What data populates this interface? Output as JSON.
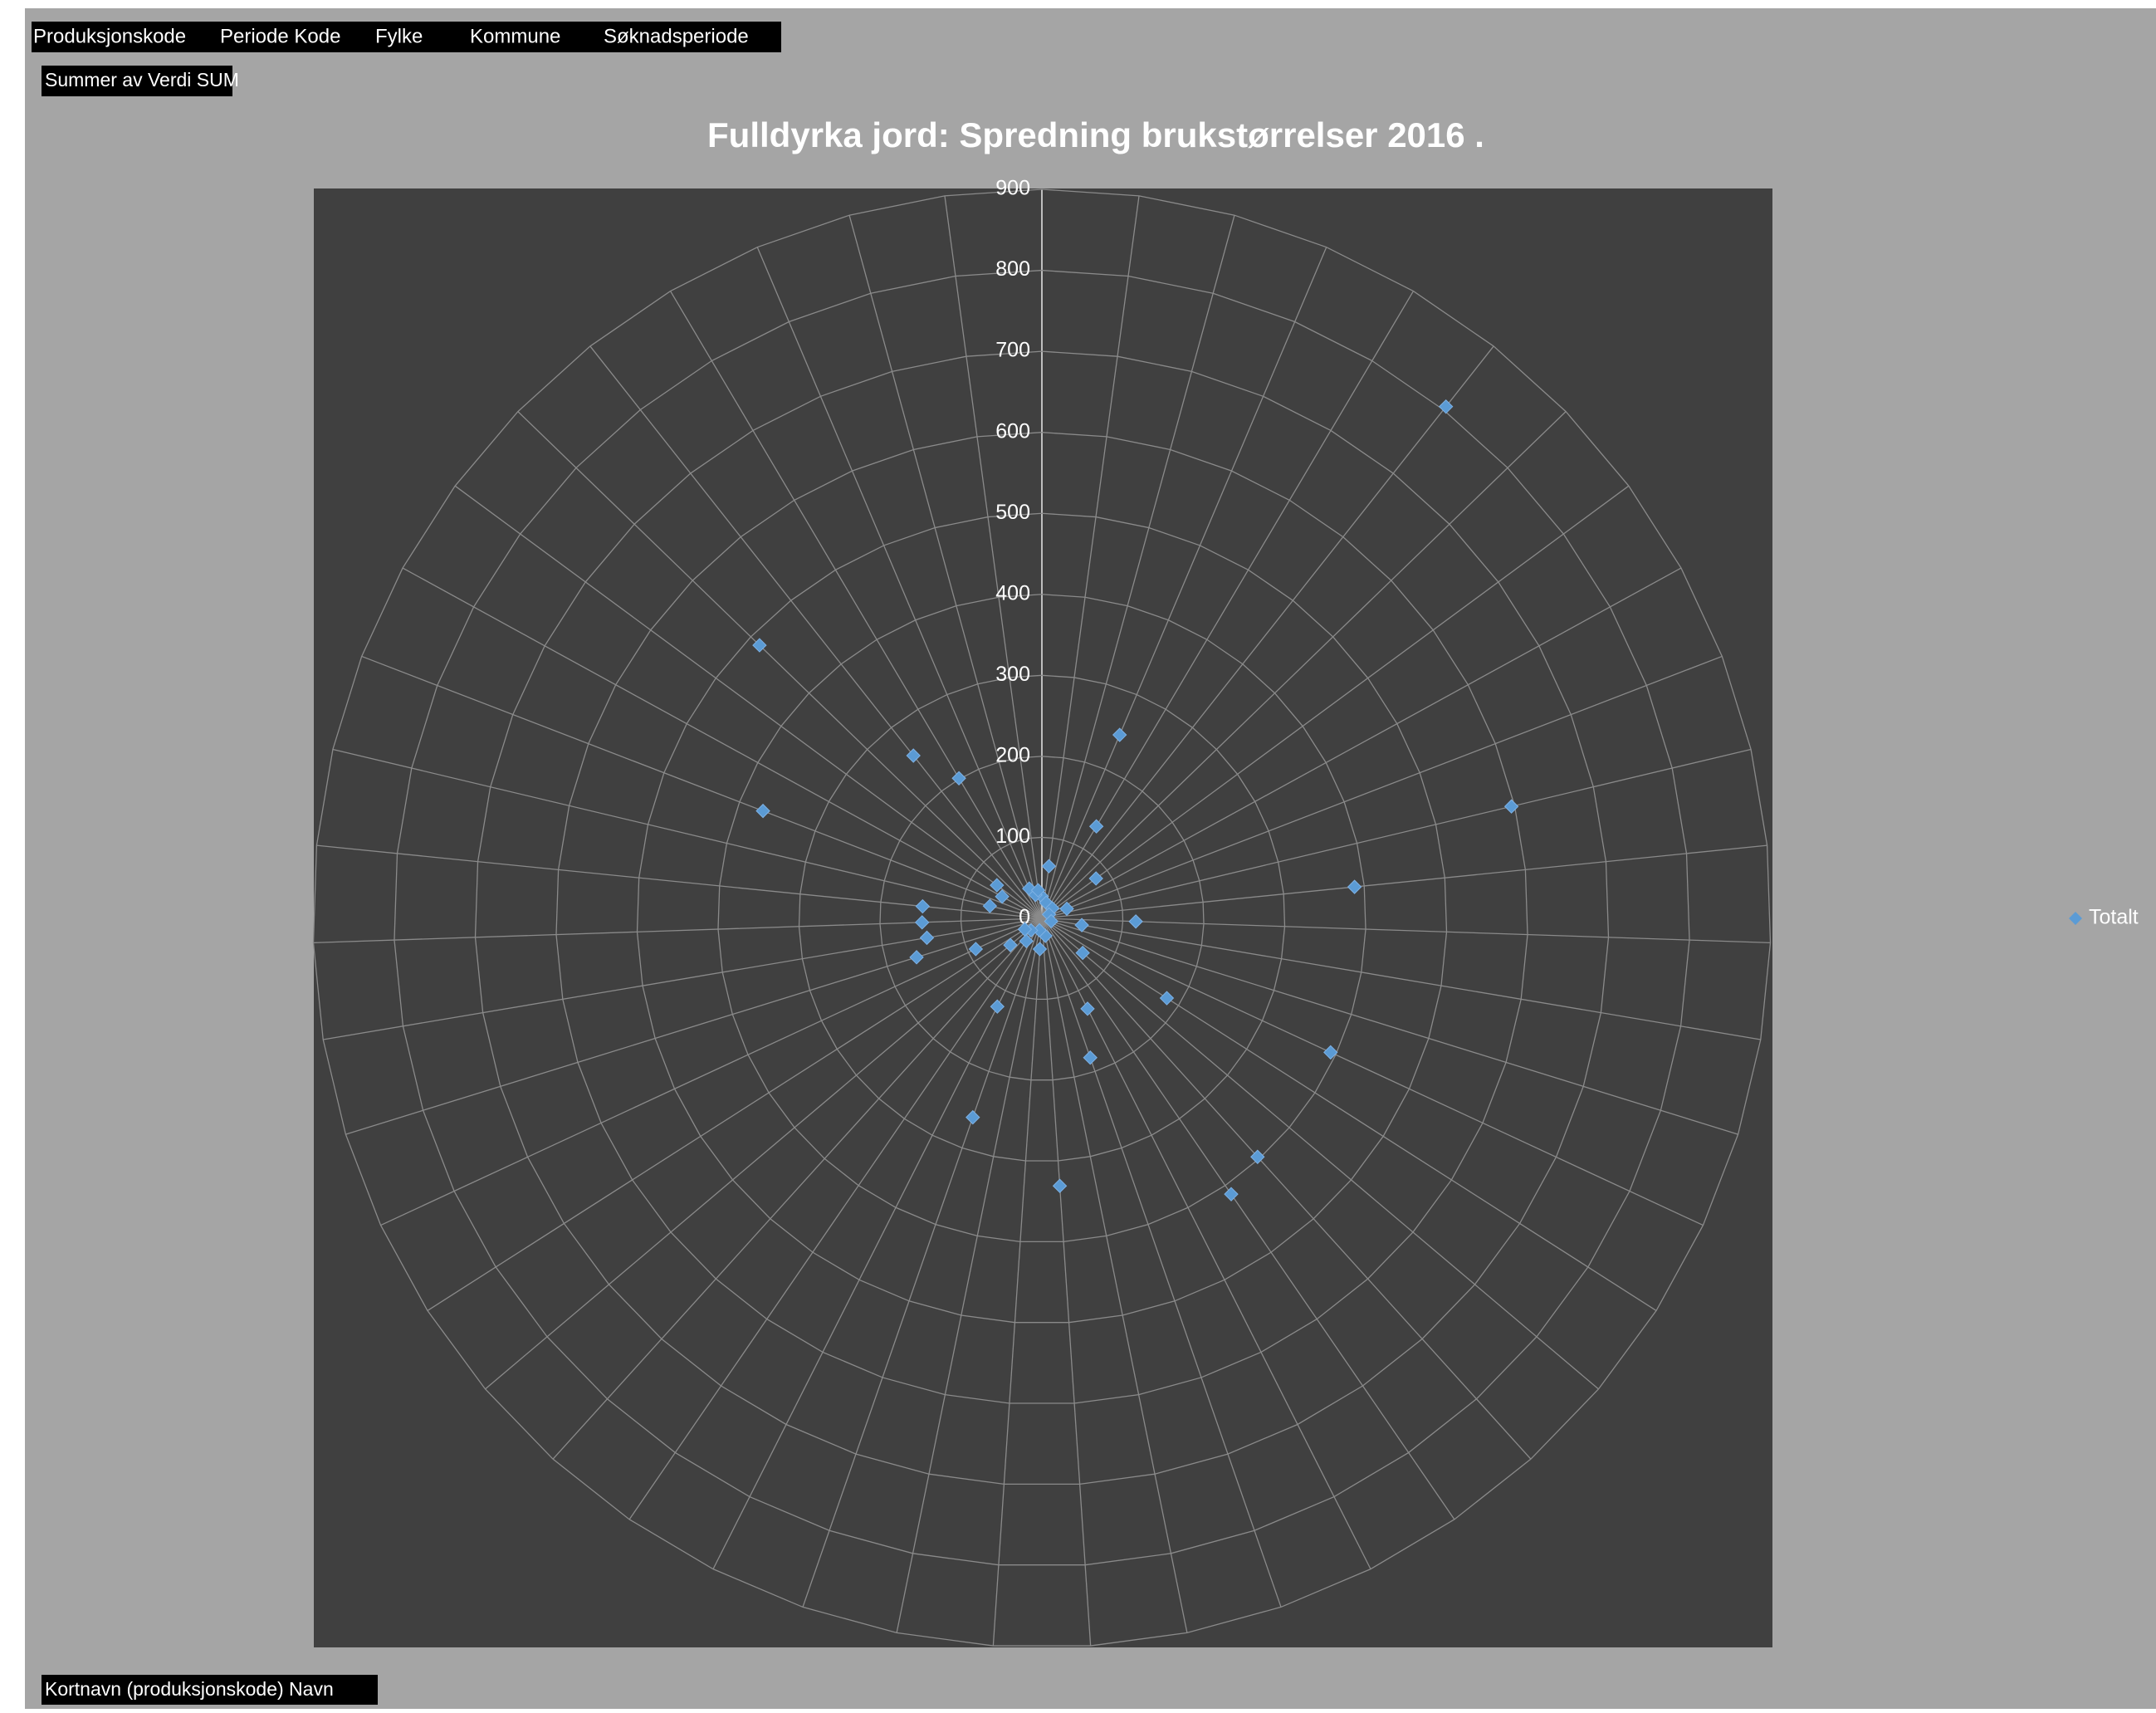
{
  "field_buttons": {
    "filters": [
      "Produksjonskode",
      "Periode Kode",
      "Fylke",
      "Kommune",
      "Søknadsperiode"
    ],
    "values_field": "Summer av Verdi SUM",
    "axis_field": "Kortnavn (produksjonskode) Navn"
  },
  "chart_data": {
    "type": "radar",
    "title": "Fulldyrka jord: Spredning brukstørrelser 2016  .",
    "categories": [
      null,
      null,
      null,
      null,
      null,
      null,
      null,
      null,
      null,
      null,
      null,
      null,
      null,
      null,
      null,
      null,
      null,
      null,
      null,
      null,
      null,
      null,
      null,
      null,
      null,
      null,
      null,
      null,
      null,
      null,
      null,
      null,
      null,
      null,
      null,
      null,
      null,
      null,
      null,
      null,
      null,
      null,
      null,
      null,
      null,
      null,
      null
    ],
    "series": [
      {
        "name": "Totalt",
        "color": "#5b9bd5",
        "values": [
          27,
          65,
          20,
          246,
          132,
          805,
          18,
          83,
          10,
          33,
          596,
          388,
          116,
          50,
          12,
          393,
          183,
          66,
          397,
          413,
          125,
          182,
          22,
          331,
          38,
          15,
          260,
          122,
          34,
          20,
          51,
          25,
          90,
          162,
          144,
          148,
          148,
          66,
          369,
          56,
          69,
          485,
          256,
          201,
          40,
          30,
          35
        ]
      }
    ],
    "ylim": [
      0,
      900
    ],
    "yticks": [
      0,
      100,
      200,
      300,
      400,
      500,
      600,
      700,
      800,
      900
    ],
    "grid": true,
    "legend": "right"
  }
}
